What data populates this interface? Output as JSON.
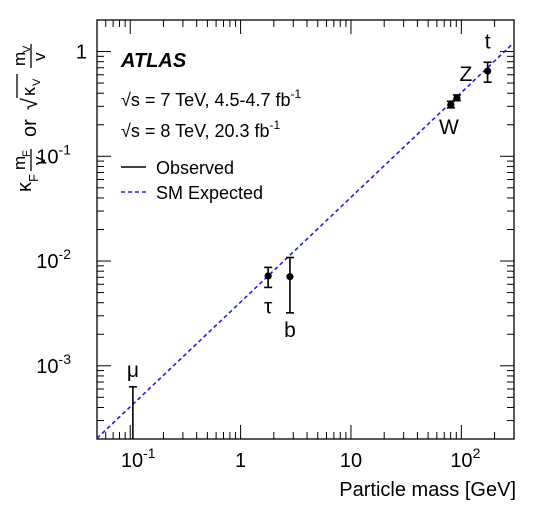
{
  "chart_data": {
    "type": "scatter",
    "title": "",
    "xlabel": "Particle mass [GeV]",
    "ylabel": {
      "kappa_f": "κ",
      "kappa_f_sub": "F",
      "frac1_num": "m",
      "frac1_num_sub": "F",
      "frac1_den": "v",
      "or": "or",
      "root_symbol": "√",
      "kappa_v": "κ",
      "kappa_v_sub": "V",
      "frac2_num": "m",
      "frac2_num_sub": "V",
      "frac2_den": "v"
    },
    "log_x": true,
    "log_y": true,
    "xlim": [
      0.05,
      300
    ],
    "ylim": [
      0.0002,
      2
    ],
    "x_ticks": [
      {
        "value": 0.1,
        "base": "10",
        "exp": "-1"
      },
      {
        "value": 1,
        "base": "1",
        "exp": ""
      },
      {
        "value": 10,
        "base": "10",
        "exp": ""
      },
      {
        "value": 100,
        "base": "10",
        "exp": "2"
      }
    ],
    "y_ticks": [
      {
        "value": 0.001,
        "base": "10",
        "exp": "-3"
      },
      {
        "value": 0.01,
        "base": "10",
        "exp": "-2"
      },
      {
        "value": 0.1,
        "base": "10",
        "exp": "-1"
      },
      {
        "value": 1,
        "base": "1",
        "exp": ""
      }
    ],
    "brand": "ATLAS",
    "annotations": [
      {
        "root": "√",
        "var": "s",
        "text": " = 7 TeV, 4.5-4.7 fb",
        "exp": "-1"
      },
      {
        "root": "√",
        "var": "s",
        "text": " = 8 TeV, 20.3 fb",
        "exp": "-1"
      }
    ],
    "legend": {
      "placement": "top-left",
      "entries": [
        {
          "label": "Observed",
          "style": "solid"
        },
        {
          "label": "SM Expected",
          "style": "dashed"
        }
      ]
    },
    "series": [
      {
        "type": "points",
        "points": [
          {
            "label": "μ",
            "x": 0.1057,
            "y": null,
            "err_low": 0.0002,
            "err_high": 0.00063
          },
          {
            "label": "τ",
            "x": 1.777,
            "y": 0.0072,
            "err_low": 0.0056,
            "err_high": 0.0087
          },
          {
            "label": "b",
            "x": 2.8,
            "y": 0.0071,
            "err_low": 0.0032,
            "err_high": 0.0108
          },
          {
            "label": "W",
            "x": 80.4,
            "y": 0.31,
            "err_low": 0.29,
            "err_high": 0.335
          },
          {
            "label": "Z",
            "x": 91.2,
            "y": 0.36,
            "err_low": 0.34,
            "err_high": 0.385
          },
          {
            "label": "t",
            "x": 173,
            "y": 0.65,
            "err_low": 0.51,
            "err_high": 0.79
          }
        ]
      },
      {
        "type": "line",
        "x": [
          0.05,
          300
        ],
        "y": [
          0.000203,
          1.218
        ]
      }
    ],
    "colors": {
      "observed": "#000000",
      "expected": "#1f1fd8"
    }
  }
}
